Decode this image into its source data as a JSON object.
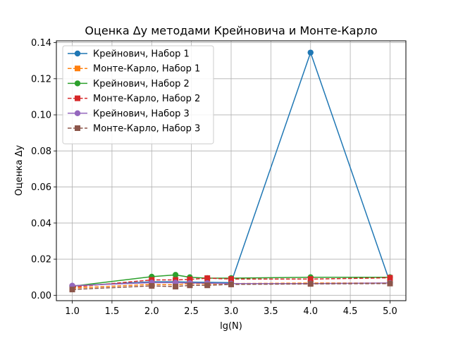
{
  "chart_data": {
    "type": "line",
    "title": "Оценка Δy методами Крейновича и Монте-Карло",
    "xlabel": "lg(N)",
    "ylabel": "Оценка Δy",
    "xlim": [
      0.8,
      5.2
    ],
    "ylim": [
      -0.003,
      0.141
    ],
    "xticks": [
      1.0,
      1.5,
      2.0,
      2.5,
      3.0,
      3.5,
      4.0,
      4.5,
      5.0
    ],
    "xtick_labels": [
      "1.0",
      "1.5",
      "2.0",
      "2.5",
      "3.0",
      "3.5",
      "4.0",
      "4.5",
      "5.0"
    ],
    "yticks": [
      0.0,
      0.02,
      0.04,
      0.06,
      0.08,
      0.1,
      0.12,
      0.14
    ],
    "ytick_labels": [
      "0.00",
      "0.02",
      "0.04",
      "0.06",
      "0.08",
      "0.10",
      "0.12",
      "0.14"
    ],
    "grid": true,
    "legend_position": "top-left",
    "series": [
      {
        "name": "Крейнович, Набор 1",
        "color": "#1f77b4",
        "linestyle": "solid",
        "marker": "circle",
        "x": [
          1.0,
          2.0,
          2.3,
          2.48,
          2.7,
          3.0,
          4.0,
          5.0
        ],
        "y": [
          0.0052,
          0.0075,
          0.0075,
          0.0073,
          0.0072,
          0.007,
          0.1345,
          0.007
        ]
      },
      {
        "name": "Монте-Карло, Набор 1",
        "color": "#ff7f0e",
        "linestyle": "dashed",
        "marker": "square",
        "x": [
          1.0,
          2.0,
          2.3,
          2.48,
          2.7,
          3.0,
          4.0,
          5.0
        ],
        "y": [
          0.004,
          0.006,
          0.0058,
          0.0065,
          0.0063,
          0.0065,
          0.0068,
          0.0068
        ]
      },
      {
        "name": "Крейнович, Набор 2",
        "color": "#2ca02c",
        "linestyle": "solid",
        "marker": "circle",
        "x": [
          1.0,
          2.0,
          2.3,
          2.48,
          2.7,
          3.0,
          4.0,
          5.0
        ],
        "y": [
          0.005,
          0.0103,
          0.0113,
          0.01,
          0.0095,
          0.0095,
          0.01,
          0.01
        ]
      },
      {
        "name": "Монте-Карло, Набор 2",
        "color": "#d62728",
        "linestyle": "dashed",
        "marker": "square",
        "x": [
          1.0,
          2.0,
          2.3,
          2.48,
          2.7,
          3.0,
          4.0,
          5.0
        ],
        "y": [
          0.0045,
          0.0085,
          0.0085,
          0.0088,
          0.0095,
          0.009,
          0.009,
          0.0097
        ]
      },
      {
        "name": "Крейнович, Набор 3",
        "color": "#9467bd",
        "linestyle": "solid",
        "marker": "circle",
        "x": [
          1.0,
          2.0,
          2.3,
          2.48,
          2.7,
          3.0,
          4.0,
          5.0
        ],
        "y": [
          0.0053,
          0.007,
          0.007,
          0.0068,
          0.0067,
          0.0065,
          0.0065,
          0.0068
        ]
      },
      {
        "name": "Монте-Карло, Набор 3",
        "color": "#8c564b",
        "linestyle": "dashed",
        "marker": "square",
        "x": [
          1.0,
          2.0,
          2.3,
          2.48,
          2.7,
          3.0,
          4.0,
          5.0
        ],
        "y": [
          0.0032,
          0.0052,
          0.0048,
          0.0055,
          0.0055,
          0.006,
          0.0063,
          0.0065
        ]
      }
    ]
  }
}
